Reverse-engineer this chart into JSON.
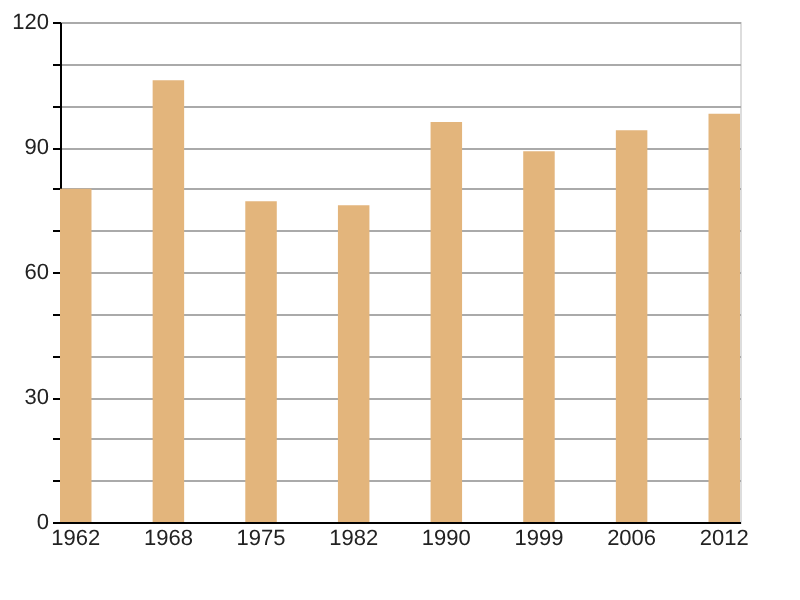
{
  "chart_data": {
    "type": "bar",
    "categories": [
      "1962",
      "1968",
      "1975",
      "1982",
      "1990",
      "1999",
      "2006",
      "2012"
    ],
    "values": [
      80,
      106,
      77,
      76,
      96,
      89,
      94,
      98
    ],
    "color": "#e3b57c",
    "ylim": [
      0,
      120
    ],
    "yticks": [
      0,
      {
        "value": 10,
        "label": null
      },
      {
        "value": 20,
        "label": null
      },
      30,
      {
        "value": 40,
        "label": null
      },
      {
        "value": 50,
        "label": null
      },
      60,
      {
        "value": 70,
        "label": null
      },
      {
        "value": 80,
        "label": null
      },
      90,
      {
        "value": 100,
        "label": null
      },
      {
        "value": 110,
        "label": null
      },
      120
    ],
    "grid": "y"
  }
}
